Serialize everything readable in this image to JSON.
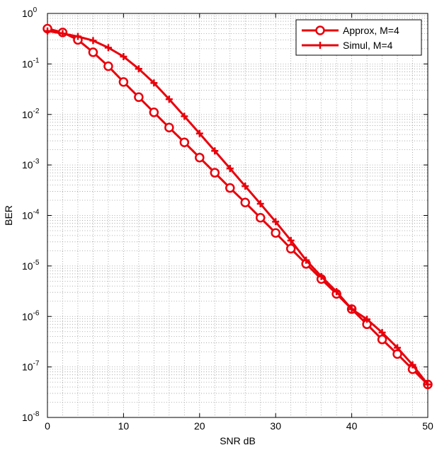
{
  "chart_data": {
    "type": "line",
    "xlabel": "SNR dB",
    "ylabel": "BER",
    "xlim": [
      0,
      50
    ],
    "ylim": [
      1e-08,
      1
    ],
    "yscale": "log",
    "grid": true,
    "legend_position": "top-right",
    "x_ticks": [
      "0",
      "10",
      "20",
      "30",
      "40",
      "50"
    ],
    "y_ticks": [
      {
        "base": "10",
        "exp": "0"
      },
      {
        "base": "10",
        "exp": "-1"
      },
      {
        "base": "10",
        "exp": "-2"
      },
      {
        "base": "10",
        "exp": "-3"
      },
      {
        "base": "10",
        "exp": "-4"
      },
      {
        "base": "10",
        "exp": "-5"
      },
      {
        "base": "10",
        "exp": "-6"
      },
      {
        "base": "10",
        "exp": "-7"
      },
      {
        "base": "10",
        "exp": "-8"
      }
    ],
    "series": [
      {
        "name": "Approx, M=4",
        "color": "#e8000b",
        "marker": "circle",
        "x": [
          0,
          2,
          4,
          6,
          8,
          10,
          12,
          14,
          16,
          18,
          20,
          22,
          24,
          26,
          28,
          30,
          32,
          34,
          36,
          38,
          40,
          42,
          44,
          46,
          48,
          50
        ],
        "y": [
          0.5,
          0.42,
          0.3,
          0.17,
          0.09,
          0.044,
          0.022,
          0.011,
          0.0055,
          0.0028,
          0.0014,
          0.0007,
          0.00035,
          0.00018,
          9e-05,
          4.5e-05,
          2.2e-05,
          1.1e-05,
          5.5e-06,
          2.8e-06,
          1.4e-06,
          7e-07,
          3.5e-07,
          1.8e-07,
          9e-08,
          4.5e-08
        ]
      },
      {
        "name": "Simul, M=4",
        "color": "#e8000b",
        "marker": "plus",
        "x": [
          0,
          2,
          4,
          6,
          8,
          10,
          12,
          14,
          16,
          18,
          20,
          22,
          24,
          26,
          28,
          30,
          32,
          34,
          36,
          38,
          40,
          42,
          44,
          46,
          48,
          50
        ],
        "y": [
          0.45,
          0.4,
          0.35,
          0.29,
          0.21,
          0.14,
          0.08,
          0.042,
          0.02,
          0.0092,
          0.0042,
          0.0019,
          0.00085,
          0.00038,
          0.00017,
          7.5e-05,
          3.2e-05,
          1.3e-05,
          6.2e-06,
          3.1e-06,
          1.4e-06,
          8.8e-07,
          4.8e-07,
          2.4e-07,
          1.1e-07,
          4.5e-08
        ]
      }
    ]
  }
}
